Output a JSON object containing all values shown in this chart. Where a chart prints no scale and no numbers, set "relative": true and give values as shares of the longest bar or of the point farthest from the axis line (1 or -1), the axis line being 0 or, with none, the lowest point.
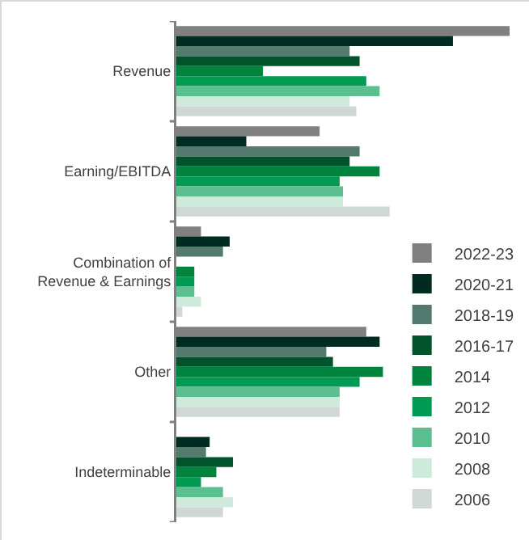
{
  "chart_data": {
    "type": "bar",
    "orientation": "horizontal",
    "relative": true,
    "legend": "bottom right",
    "categories": [
      "Revenue",
      "Earning/EBITDA",
      "Combination of Revenue & Earnings",
      "Other",
      "Indeterminable"
    ],
    "series": [
      {
        "name": "2022-23",
        "color": "#808080",
        "values": [
          1.0,
          0.43,
          0.074,
          0.57,
          0
        ]
      },
      {
        "name": "2020-21",
        "color": "#002b22",
        "values": [
          0.83,
          0.21,
          0.16,
          0.61,
          0.1
        ]
      },
      {
        "name": "2018-19",
        "color": "#547a70",
        "values": [
          0.52,
          0.55,
          0.14,
          0.45,
          0.089
        ]
      },
      {
        "name": "2016-17",
        "color": "#00532a",
        "values": [
          0.55,
          0.52,
          0,
          0.47,
          0.17
        ]
      },
      {
        "name": "2014",
        "color": "#00843d",
        "values": [
          0.26,
          0.61,
          0.054,
          0.62,
          0.12
        ]
      },
      {
        "name": "2012",
        "color": "#009a52",
        "values": [
          0.57,
          0.49,
          0.054,
          0.55,
          0.074
        ]
      },
      {
        "name": "2010",
        "color": "#5bbf8f",
        "values": [
          0.61,
          0.5,
          0.054,
          0.49,
          0.14
        ]
      },
      {
        "name": "2008",
        "color": "#cdeadb",
        "values": [
          0.52,
          0.5,
          0.074,
          0.49,
          0.17
        ]
      },
      {
        "name": "2006",
        "color": "#cfd8d4",
        "values": [
          0.54,
          0.64,
          0.018,
          0.49,
          0.14
        ]
      }
    ]
  }
}
